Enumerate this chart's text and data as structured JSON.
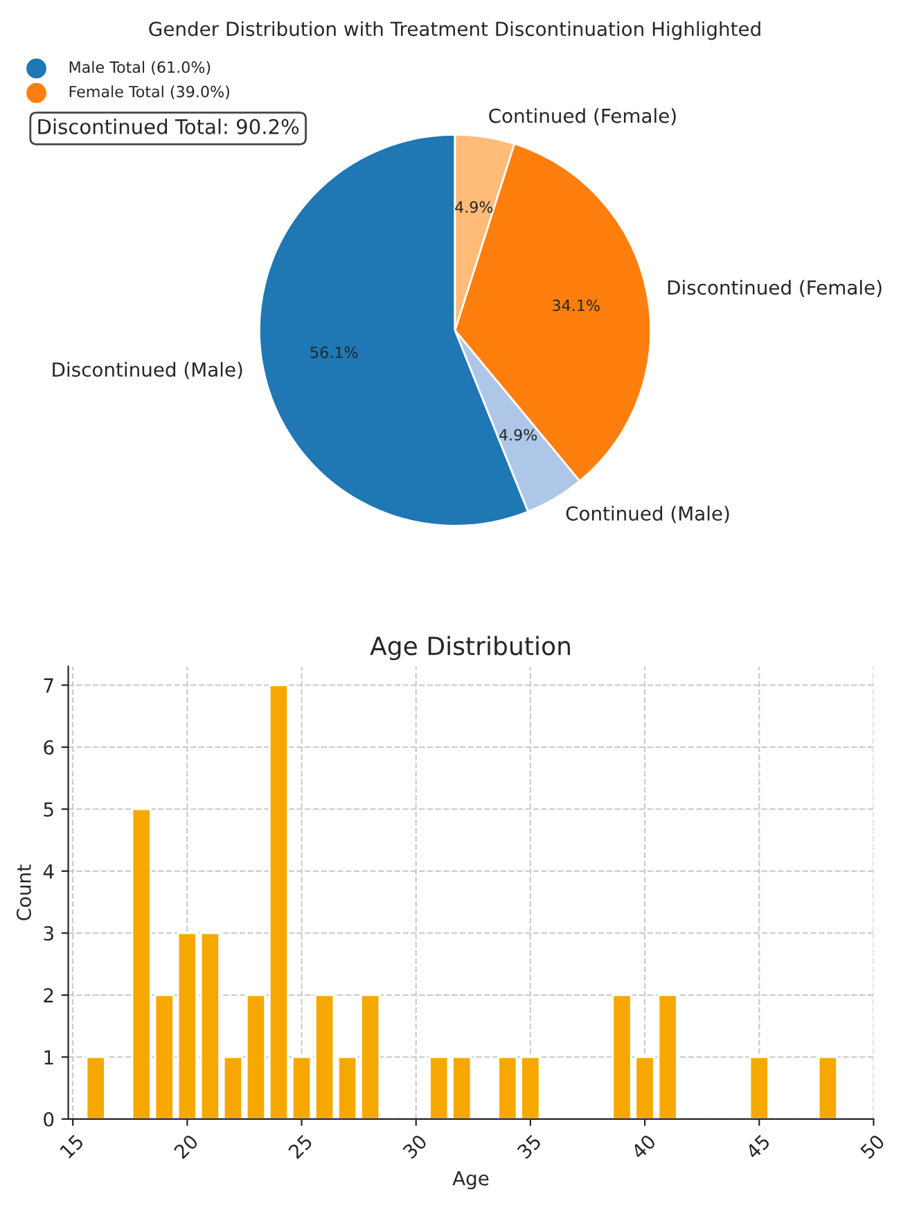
{
  "chart_data": [
    {
      "type": "pie",
      "title": "Gender Distribution with Treatment Discontinuation Highlighted",
      "categories": [
        "Discontinued (Male)",
        "Continued (Male)",
        "Discontinued (Female)",
        "Continued (Female)"
      ],
      "values": [
        56.1,
        4.9,
        34.1,
        4.9
      ],
      "colors": [
        "#1f77b4",
        "#aec7e8",
        "#ff7f0e",
        "#ffbb78"
      ],
      "value_labels": [
        "56.1%",
        "4.9%",
        "34.1%",
        "4.9%"
      ],
      "annotations": [
        "Male Total (61.0%)",
        "Female Total (39.0%)",
        "Discontinued Total: 90.2%"
      ]
    },
    {
      "type": "histogram",
      "title": "Age Distribution",
      "xlabel": "Age",
      "ylabel": "Count",
      "bins": [
        15.5,
        16.5,
        17.5,
        18.5,
        19.5,
        20.5,
        21.5,
        22.5,
        23.5,
        24.5,
        25.5,
        26.5,
        27.5,
        28.5,
        29.5,
        30.5,
        31.5,
        32.5,
        33.5,
        34.5,
        35.5,
        36.5,
        37.5,
        38.5,
        39.5,
        40.5,
        41.5,
        42.5,
        43.5,
        44.5,
        45.5,
        46.5,
        47.5,
        48.5
      ],
      "values": [
        1,
        0,
        5,
        2,
        3,
        3,
        1,
        2,
        7,
        1,
        2,
        1,
        2,
        0,
        0,
        1,
        1,
        0,
        1,
        1,
        0,
        0,
        0,
        2,
        1,
        2,
        0,
        0,
        0,
        1,
        0,
        0,
        1
      ],
      "color": "#f7a800",
      "xlim": [
        14.8,
        50
      ],
      "xticks": [
        15,
        20,
        25,
        30,
        35,
        40,
        45,
        50
      ],
      "ylim": [
        0,
        7.3
      ],
      "yticks": [
        0,
        1,
        2,
        3,
        4,
        5,
        6,
        7
      ],
      "grid": true
    }
  ]
}
